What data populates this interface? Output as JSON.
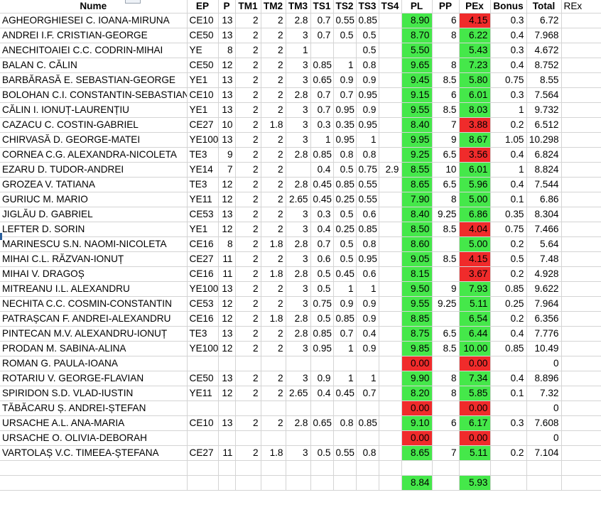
{
  "headers": [
    "Nume",
    "EP",
    "P",
    "TM1",
    "TM2",
    "TM3",
    "TS1",
    "TS2",
    "TS3",
    "TS4",
    "PL",
    "PP",
    "PEx",
    "Bonus",
    "Total",
    "REx"
  ],
  "colors": {
    "pass": "#45e84a",
    "fail": "#f02b2b"
  },
  "rows": [
    {
      "name": "AGHEORGHIESEI C. IOANA-MIRUNA",
      "ep": "CE10",
      "p": "13",
      "tm1": "2",
      "tm2": "2",
      "tm3": "2.8",
      "ts1": "0.7",
      "ts2": "0.55",
      "ts3": "0.85",
      "ts4": "",
      "pl": "8.90",
      "pl_c": "green",
      "pp": "6",
      "pex": "4.15",
      "pex_c": "red",
      "bonus": "0.3",
      "total": "6.72"
    },
    {
      "name": "ANDREI I.F. CRISTIAN-GEORGE",
      "ep": "CE50",
      "p": "13",
      "tm1": "2",
      "tm2": "2",
      "tm3": "3",
      "ts1": "0.7",
      "ts2": "0.5",
      "ts3": "0.5",
      "ts4": "",
      "pl": "8.70",
      "pl_c": "green",
      "pp": "8",
      "pex": "6.22",
      "pex_c": "green",
      "bonus": "0.4",
      "total": "7.968"
    },
    {
      "name": "ANECHITOAIEI C.C. CODRIN-MIHAI",
      "ep": "YE",
      "p": "8",
      "tm1": "2",
      "tm2": "2",
      "tm3": "1",
      "ts1": "",
      "ts2": "",
      "ts3": "0.5",
      "ts4": "",
      "pl": "5.50",
      "pl_c": "green",
      "pp": "",
      "pex": "5.43",
      "pex_c": "green",
      "bonus": "0.3",
      "total": "4.672"
    },
    {
      "name": "BALAN C. CĂLIN",
      "ep": "CE50",
      "p": "12",
      "tm1": "2",
      "tm2": "2",
      "tm3": "3",
      "ts1": "0.85",
      "ts2": "1",
      "ts3": "0.8",
      "ts4": "",
      "pl": "9.65",
      "pl_c": "green",
      "pp": "8",
      "pex": "7.23",
      "pex_c": "green",
      "bonus": "0.4",
      "total": "8.752"
    },
    {
      "name": "BARBĂRASĂ E. SEBASTIAN-GEORGE",
      "ep": "YE1",
      "p": "13",
      "tm1": "2",
      "tm2": "2",
      "tm3": "3",
      "ts1": "0.65",
      "ts2": "0.9",
      "ts3": "0.9",
      "ts4": "",
      "pl": "9.45",
      "pl_c": "green",
      "pp": "8.5",
      "pex": "5.80",
      "pex_c": "green",
      "bonus": "0.75",
      "total": "8.55"
    },
    {
      "name": "BOLOHAN C.I. CONSTANTIN-SEBASTIAN",
      "ep": "CE10",
      "p": "13",
      "tm1": "2",
      "tm2": "2",
      "tm3": "2.8",
      "ts1": "0.7",
      "ts2": "0.7",
      "ts3": "0.95",
      "ts4": "",
      "pl": "9.15",
      "pl_c": "green",
      "pp": "6",
      "pex": "6.01",
      "pex_c": "green",
      "bonus": "0.3",
      "total": "7.564"
    },
    {
      "name": "CĂLIN I. IONUȚ-LAURENȚIU",
      "ep": "YE1",
      "p": "13",
      "tm1": "2",
      "tm2": "2",
      "tm3": "3",
      "ts1": "0.7",
      "ts2": "0.95",
      "ts3": "0.9",
      "ts4": "",
      "pl": "9.55",
      "pl_c": "green",
      "pp": "8.5",
      "pex": "8.03",
      "pex_c": "green",
      "bonus": "1",
      "total": "9.732"
    },
    {
      "name": "CAZACU C. COSTIN-GABRIEL",
      "ep": "CE27",
      "p": "10",
      "tm1": "2",
      "tm2": "1.8",
      "tm3": "3",
      "ts1": "0.3",
      "ts2": "0.35",
      "ts3": "0.95",
      "ts4": "",
      "pl": "8.40",
      "pl_c": "green",
      "pp": "7",
      "pex": "3.88",
      "pex_c": "red",
      "bonus": "0.2",
      "total": "6.512"
    },
    {
      "name": "CHIRVASĂ D. GEORGE-MATEI",
      "ep": "YE100",
      "p": "13",
      "tm1": "2",
      "tm2": "2",
      "tm3": "3",
      "ts1": "1",
      "ts2": "0.95",
      "ts3": "1",
      "ts4": "",
      "pl": "9.95",
      "pl_c": "green",
      "pp": "9",
      "pex": "8.67",
      "pex_c": "green",
      "bonus": "1.05",
      "total": "10.298"
    },
    {
      "name": "CORNEA C.G. ALEXANDRA-NICOLETA",
      "ep": "TE3",
      "p": "9",
      "tm1": "2",
      "tm2": "2",
      "tm3": "2.8",
      "ts1": "0.85",
      "ts2": "0.8",
      "ts3": "0.8",
      "ts4": "",
      "pl": "9.25",
      "pl_c": "green",
      "pp": "6.5",
      "pex": "3.56",
      "pex_c": "red",
      "bonus": "0.4",
      "total": "6.824"
    },
    {
      "name": "EZARU D. TUDOR-ANDREI",
      "ep": "YE14",
      "p": "7",
      "tm1": "2",
      "tm2": "2",
      "tm3": "",
      "ts1": "0.4",
      "ts2": "0.5",
      "ts3": "0.75",
      "ts4": "2.9",
      "pl": "8.55",
      "pl_c": "green",
      "pp": "10",
      "pex": "6.01",
      "pex_c": "green",
      "bonus": "1",
      "total": "8.824"
    },
    {
      "name": "GROZEA V. TATIANA",
      "ep": "TE3",
      "p": "12",
      "tm1": "2",
      "tm2": "2",
      "tm3": "2.8",
      "ts1": "0.45",
      "ts2": "0.85",
      "ts3": "0.55",
      "ts4": "",
      "pl": "8.65",
      "pl_c": "green",
      "pp": "6.5",
      "pex": "5.96",
      "pex_c": "green",
      "bonus": "0.4",
      "total": "7.544"
    },
    {
      "name": "GURIUC M. MARIO",
      "ep": "YE11",
      "p": "12",
      "tm1": "2",
      "tm2": "2",
      "tm3": "2.65",
      "ts1": "0.45",
      "ts2": "0.25",
      "ts3": "0.55",
      "ts4": "",
      "pl": "7.90",
      "pl_c": "green",
      "pp": "8",
      "pex": "5.00",
      "pex_c": "green",
      "bonus": "0.1",
      "total": "6.86"
    },
    {
      "name": "JIGLĂU D. GABRIEL",
      "ep": "CE53",
      "p": "13",
      "tm1": "2",
      "tm2": "2",
      "tm3": "3",
      "ts1": "0.3",
      "ts2": "0.5",
      "ts3": "0.6",
      "ts4": "",
      "pl": "8.40",
      "pl_c": "green",
      "pp": "9.25",
      "pex": "6.86",
      "pex_c": "green",
      "bonus": "0.35",
      "total": "8.304"
    },
    {
      "name": "LEFTER D. SORIN",
      "ep": "YE1",
      "p": "12",
      "tm1": "2",
      "tm2": "2",
      "tm3": "3",
      "ts1": "0.4",
      "ts2": "0.25",
      "ts3": "0.85",
      "ts4": "",
      "pl": "8.50",
      "pl_c": "green",
      "pp": "8.5",
      "pex": "4.04",
      "pex_c": "red",
      "bonus": "0.75",
      "total": "7.466"
    },
    {
      "name": "MARINESCU S.N. NAOMI-NICOLETA",
      "ep": "CE16",
      "p": "8",
      "tm1": "2",
      "tm2": "1.8",
      "tm3": "2.8",
      "ts1": "0.7",
      "ts2": "0.5",
      "ts3": "0.8",
      "ts4": "",
      "pl": "8.60",
      "pl_c": "green",
      "pp": "",
      "pex": "5.00",
      "pex_c": "green",
      "bonus": "0.2",
      "total": "5.64"
    },
    {
      "name": "MIHAI C.L. RĂZVAN-IONUȚ",
      "ep": "CE27",
      "p": "11",
      "tm1": "2",
      "tm2": "2",
      "tm3": "3",
      "ts1": "0.6",
      "ts2": "0.5",
      "ts3": "0.95",
      "ts4": "",
      "pl": "9.05",
      "pl_c": "green",
      "pp": "8.5",
      "pex": "4.15",
      "pex_c": "red",
      "bonus": "0.5",
      "total": "7.48"
    },
    {
      "name": "MIHAI V. DRAGOȘ",
      "ep": "CE16",
      "p": "11",
      "tm1": "2",
      "tm2": "1.8",
      "tm3": "2.8",
      "ts1": "0.5",
      "ts2": "0.45",
      "ts3": "0.6",
      "ts4": "",
      "pl": "8.15",
      "pl_c": "green",
      "pp": "",
      "pex": "3.67",
      "pex_c": "red",
      "bonus": "0.2",
      "total": "4.928"
    },
    {
      "name": "MITREANU I.L. ALEXANDRU",
      "ep": "YE100",
      "p": "13",
      "tm1": "2",
      "tm2": "2",
      "tm3": "3",
      "ts1": "0.5",
      "ts2": "1",
      "ts3": "1",
      "ts4": "",
      "pl": "9.50",
      "pl_c": "green",
      "pp": "9",
      "pex": "7.93",
      "pex_c": "green",
      "bonus": "0.85",
      "total": "9.622"
    },
    {
      "name": "NECHITA C.C. COSMIN-CONSTANTIN",
      "ep": "CE53",
      "p": "12",
      "tm1": "2",
      "tm2": "2",
      "tm3": "3",
      "ts1": "0.75",
      "ts2": "0.9",
      "ts3": "0.9",
      "ts4": "",
      "pl": "9.55",
      "pl_c": "green",
      "pp": "9.25",
      "pex": "5.11",
      "pex_c": "green",
      "bonus": "0.25",
      "total": "7.964"
    },
    {
      "name": "PATRAȘCAN F. ANDREI-ALEXANDRU",
      "ep": "CE16",
      "p": "12",
      "tm1": "2",
      "tm2": "1.8",
      "tm3": "2.8",
      "ts1": "0.5",
      "ts2": "0.85",
      "ts3": "0.9",
      "ts4": "",
      "pl": "8.85",
      "pl_c": "green",
      "pp": "",
      "pex": "6.54",
      "pex_c": "green",
      "bonus": "0.2",
      "total": "6.356"
    },
    {
      "name": "PINTECAN M.V. ALEXANDRU-IONUȚ",
      "ep": "TE3",
      "p": "13",
      "tm1": "2",
      "tm2": "2",
      "tm3": "2.8",
      "ts1": "0.85",
      "ts2": "0.7",
      "ts3": "0.4",
      "ts4": "",
      "pl": "8.75",
      "pl_c": "green",
      "pp": "6.5",
      "pex": "6.44",
      "pex_c": "green",
      "bonus": "0.4",
      "total": "7.776"
    },
    {
      "name": "PRODAN M. SABINA-ALINA",
      "ep": "YE100",
      "p": "12",
      "tm1": "2",
      "tm2": "2",
      "tm3": "3",
      "ts1": "0.95",
      "ts2": "1",
      "ts3": "0.9",
      "ts4": "",
      "pl": "9.85",
      "pl_c": "green",
      "pp": "8.5",
      "pex": "10.00",
      "pex_c": "green",
      "bonus": "0.85",
      "total": "10.49"
    },
    {
      "name": "ROMAN G. PAULA-IOANA",
      "ep": "",
      "p": "",
      "tm1": "",
      "tm2": "",
      "tm3": "",
      "ts1": "",
      "ts2": "",
      "ts3": "",
      "ts4": "",
      "pl": "0.00",
      "pl_c": "red",
      "pp": "",
      "pex": "0.00",
      "pex_c": "red",
      "bonus": "",
      "total": "0"
    },
    {
      "name": "ROTARIU V. GEORGE-FLAVIAN",
      "ep": "CE50",
      "p": "13",
      "tm1": "2",
      "tm2": "2",
      "tm3": "3",
      "ts1": "0.9",
      "ts2": "1",
      "ts3": "1",
      "ts4": "",
      "pl": "9.90",
      "pl_c": "green",
      "pp": "8",
      "pex": "7.34",
      "pex_c": "green",
      "bonus": "0.4",
      "total": "8.896"
    },
    {
      "name": "SPIRIDON S.D. VLAD-IUSTIN",
      "ep": "YE11",
      "p": "12",
      "tm1": "2",
      "tm2": "2",
      "tm3": "2.65",
      "ts1": "0.4",
      "ts2": "0.45",
      "ts3": "0.7",
      "ts4": "",
      "pl": "8.20",
      "pl_c": "green",
      "pp": "8",
      "pex": "5.85",
      "pex_c": "green",
      "bonus": "0.1",
      "total": "7.32"
    },
    {
      "name": "TĂBĂCARU Ș. ANDREI-ȘTEFAN",
      "ep": "",
      "p": "",
      "tm1": "",
      "tm2": "",
      "tm3": "",
      "ts1": "",
      "ts2": "",
      "ts3": "",
      "ts4": "",
      "pl": "0.00",
      "pl_c": "red",
      "pp": "",
      "pex": "0.00",
      "pex_c": "red",
      "bonus": "",
      "total": "0"
    },
    {
      "name": "URSACHE A.L. ANA-MARIA",
      "ep": "CE10",
      "p": "13",
      "tm1": "2",
      "tm2": "2",
      "tm3": "2.8",
      "ts1": "0.65",
      "ts2": "0.8",
      "ts3": "0.85",
      "ts4": "",
      "pl": "9.10",
      "pl_c": "green",
      "pp": "6",
      "pex": "6.17",
      "pex_c": "green",
      "bonus": "0.3",
      "total": "7.608"
    },
    {
      "name": "URSACHE O. OLIVIA-DEBORAH",
      "ep": "",
      "p": "",
      "tm1": "",
      "tm2": "",
      "tm3": "",
      "ts1": "",
      "ts2": "",
      "ts3": "",
      "ts4": "",
      "pl": "0.00",
      "pl_c": "red",
      "pp": "",
      "pex": "0.00",
      "pex_c": "red",
      "bonus": "",
      "total": "0"
    },
    {
      "name": "VARTOLAȘ V.C. TIMEEA-ȘTEFANA",
      "ep": "CE27",
      "p": "11",
      "tm1": "2",
      "tm2": "1.8",
      "tm3": "3",
      "ts1": "0.5",
      "ts2": "0.55",
      "ts3": "0.8",
      "ts4": "",
      "pl": "8.65",
      "pl_c": "green",
      "pp": "7",
      "pex": "5.11",
      "pex_c": "green",
      "bonus": "0.2",
      "total": "7.104"
    }
  ],
  "summary": {
    "pl": "8.84",
    "pl_c": "green",
    "pex": "5.93",
    "pex_c": "green"
  }
}
